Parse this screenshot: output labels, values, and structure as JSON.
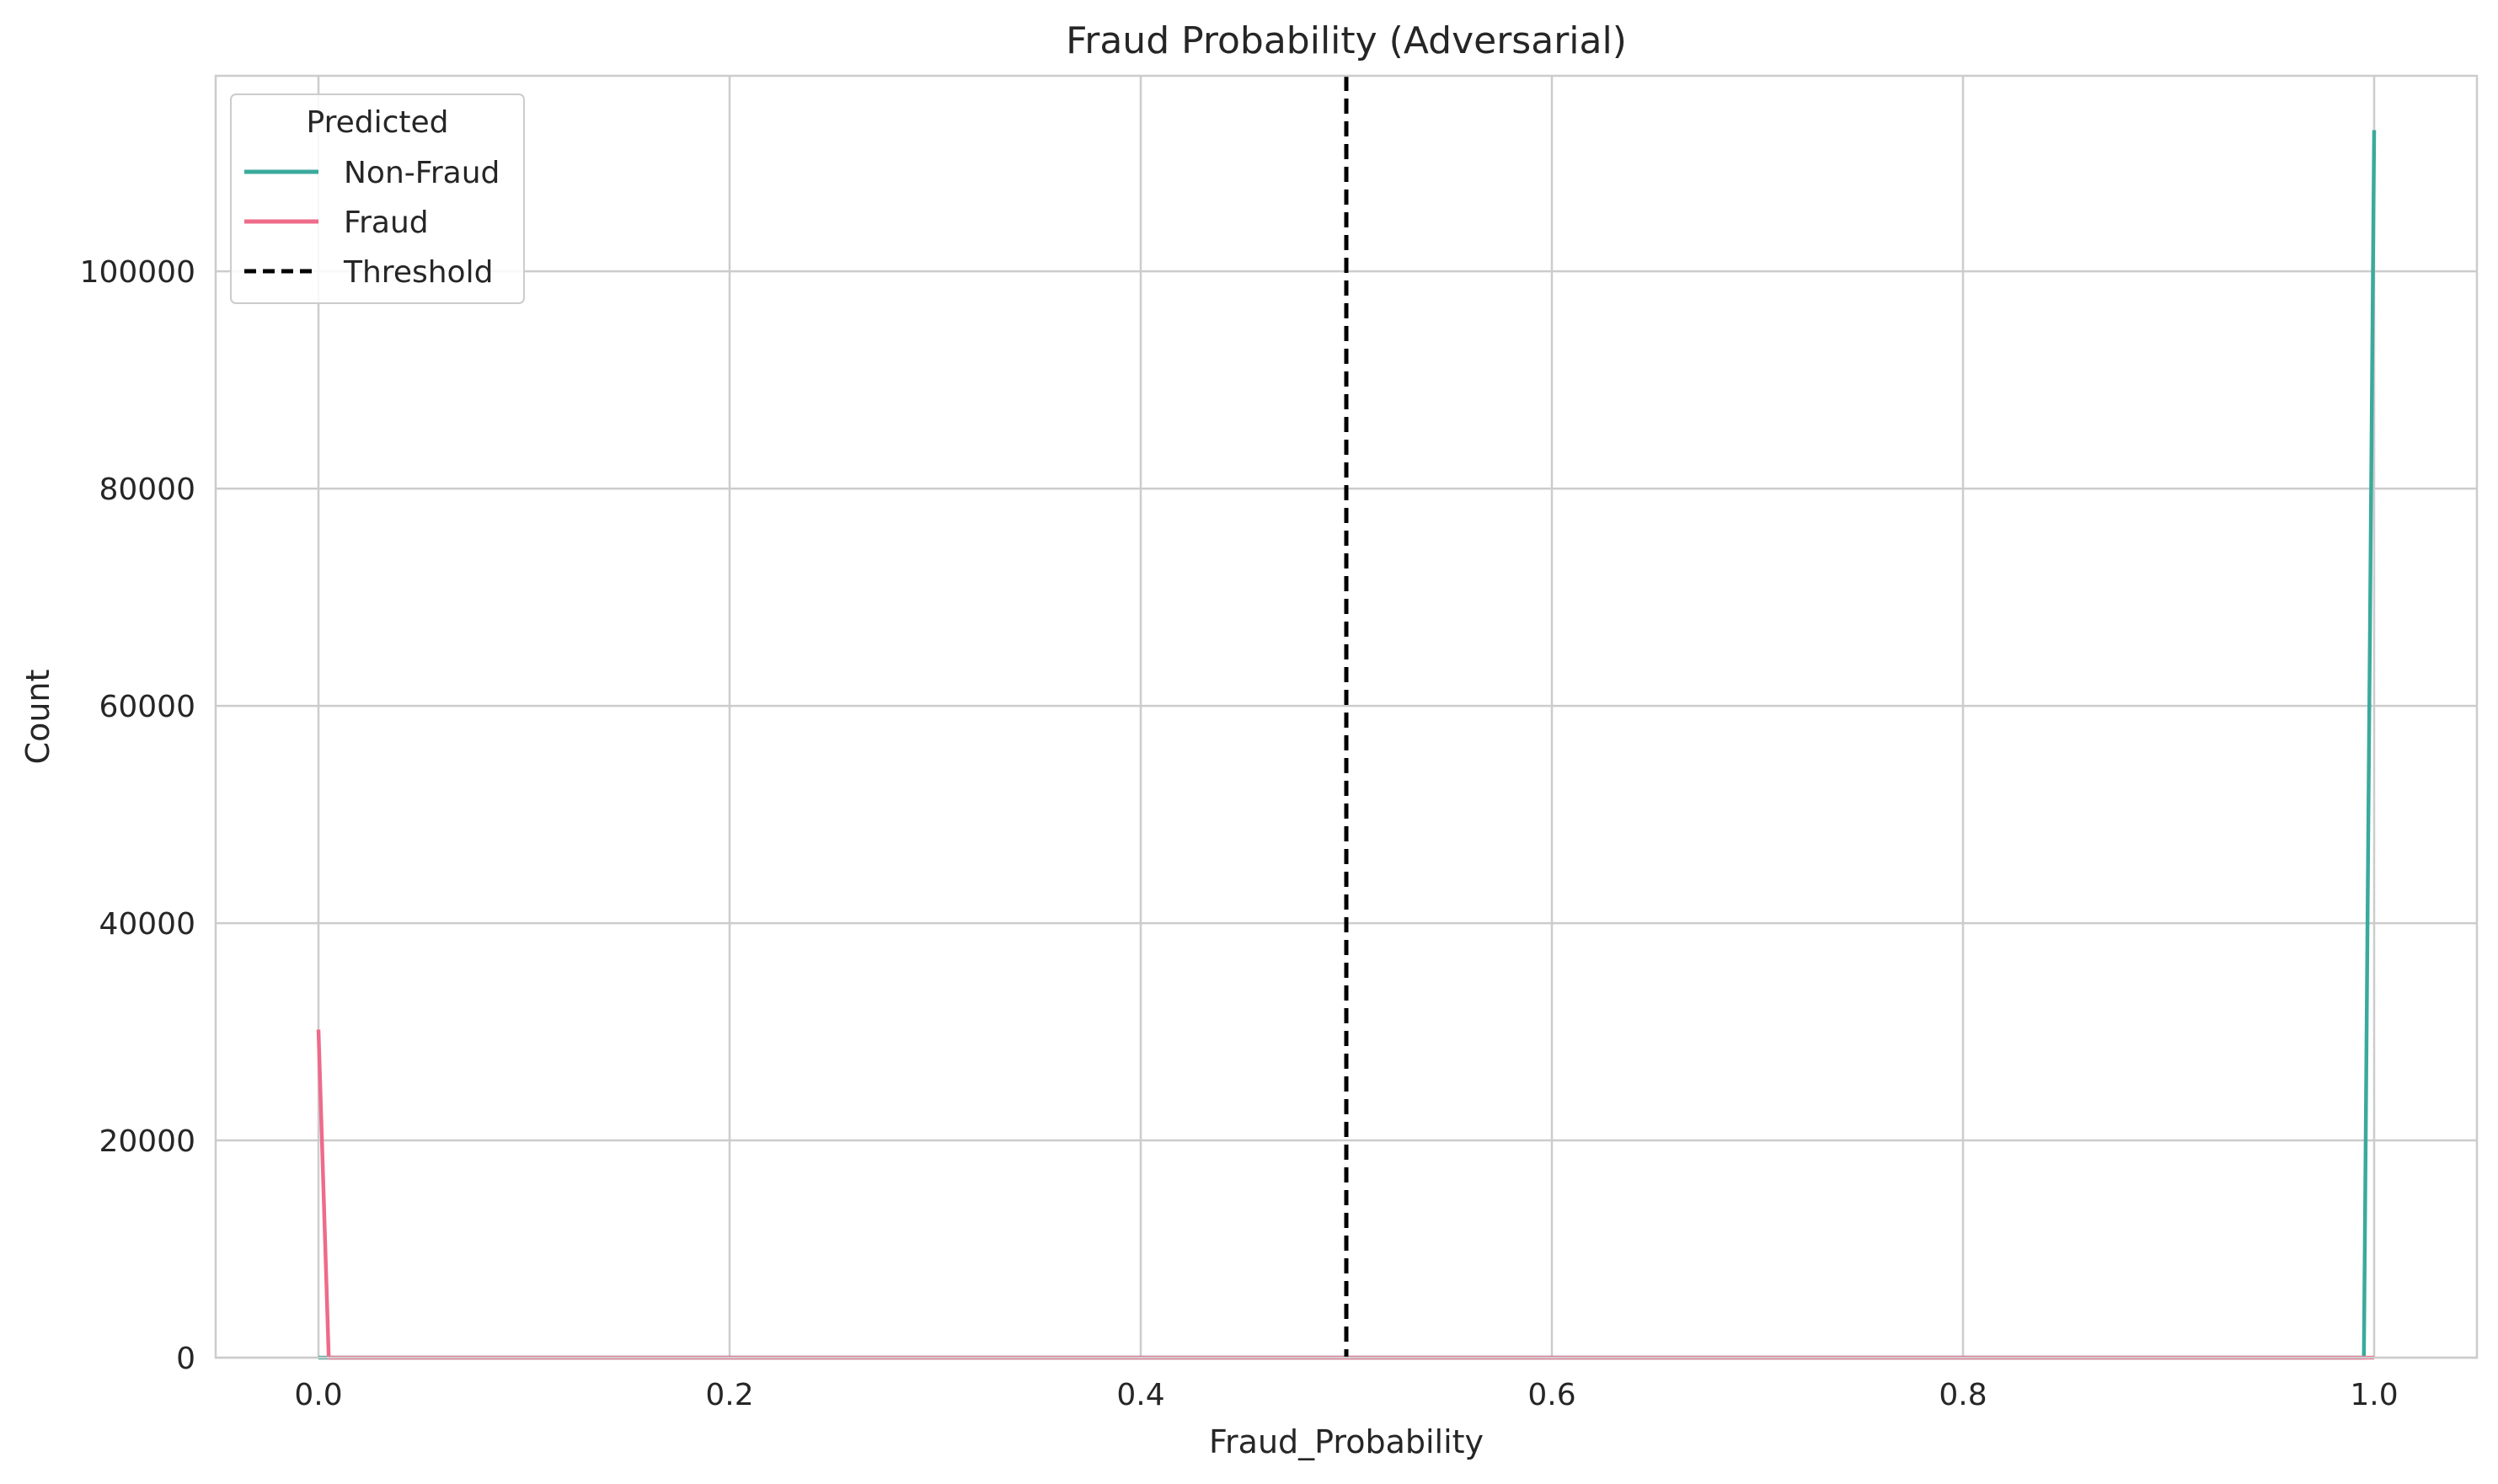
{
  "chart_data": {
    "type": "line",
    "title": "Fraud Probability (Adversarial)",
    "xlabel": "Fraud_Probability",
    "ylabel": "Count",
    "xlim": [
      -0.05,
      1.05
    ],
    "ylim": [
      0,
      118000
    ],
    "xticks": [
      0.0,
      0.2,
      0.4,
      0.6,
      0.8,
      1.0
    ],
    "xtick_labels": [
      "0.0",
      "0.2",
      "0.4",
      "0.6",
      "0.8",
      "1.0"
    ],
    "yticks": [
      0,
      20000,
      40000,
      60000,
      80000,
      100000
    ],
    "ytick_labels": [
      "0",
      "20000",
      "40000",
      "60000",
      "80000",
      "100000"
    ],
    "grid": true,
    "legend": {
      "title": "Predicted",
      "placement": "top-left",
      "entries": [
        "Non-Fraud",
        "Fraud",
        "Threshold"
      ]
    },
    "series": [
      {
        "name": "Non-Fraud",
        "color": "#3aaa9c",
        "style": "solid",
        "x": [
          0.0,
          0.995,
          1.0
        ],
        "y": [
          0,
          0,
          113000
        ]
      },
      {
        "name": "Fraud",
        "color": "#ee6b8a",
        "style": "solid",
        "x": [
          0.0,
          0.005,
          1.0
        ],
        "y": [
          30200,
          0,
          0
        ]
      }
    ],
    "threshold": {
      "name": "Threshold",
      "x": 0.5,
      "color": "#000000",
      "style": "dashed"
    }
  }
}
